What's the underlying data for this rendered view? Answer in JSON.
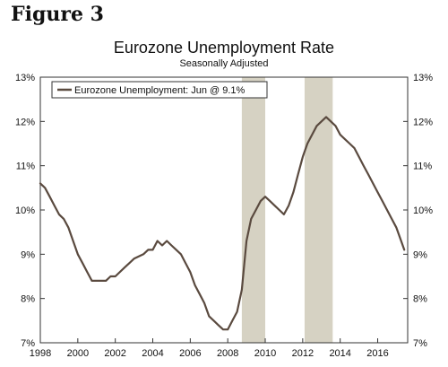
{
  "figure_label": "Figure 3",
  "chart_data": {
    "type": "line",
    "title": "Eurozone Unemployment Rate",
    "subtitle": "Seasonally Adjusted",
    "xlim": [
      1998,
      2017.6
    ],
    "ylim": [
      7,
      13
    ],
    "x_ticks": [
      1998,
      2000,
      2002,
      2004,
      2006,
      2008,
      2010,
      2012,
      2014,
      2016
    ],
    "y_ticks": [
      7,
      8,
      9,
      10,
      11,
      12,
      13
    ],
    "y_tick_labels": [
      "7%",
      "8%",
      "9%",
      "10%",
      "11%",
      "12%",
      "13%"
    ],
    "grid": false,
    "legend_position": "top-left",
    "recession_bands": [
      [
        2008.75,
        2010.0
      ],
      [
        2012.1,
        2013.6
      ]
    ],
    "colors": {
      "line": "#5a4a3f",
      "band": "#d6d2c3",
      "axis": "#333333"
    },
    "series": [
      {
        "name": "Eurozone Unemployment: Jun @ 9.1%",
        "x": [
          1998.0,
          1998.25,
          1998.5,
          1998.75,
          1999.0,
          1999.25,
          1999.5,
          1999.75,
          2000.0,
          2000.25,
          2000.5,
          2000.75,
          2001.0,
          2001.5,
          2001.75,
          2002.0,
          2002.5,
          2002.75,
          2003.0,
          2003.5,
          2003.75,
          2004.0,
          2004.25,
          2004.5,
          2004.75,
          2005.0,
          2005.25,
          2005.5,
          2005.75,
          2006.0,
          2006.25,
          2006.5,
          2006.75,
          2007.0,
          2007.25,
          2007.5,
          2007.75,
          2008.0,
          2008.25,
          2008.5,
          2008.75,
          2009.0,
          2009.25,
          2009.5,
          2009.75,
          2010.0,
          2010.25,
          2010.5,
          2010.75,
          2011.0,
          2011.25,
          2011.5,
          2011.75,
          2012.0,
          2012.25,
          2012.5,
          2012.75,
          2013.0,
          2013.25,
          2013.5,
          2013.75,
          2014.0,
          2014.25,
          2014.5,
          2014.75,
          2015.0,
          2015.25,
          2015.5,
          2015.75,
          2016.0,
          2016.25,
          2016.5,
          2016.75,
          2017.0,
          2017.25,
          2017.42
        ],
        "values": [
          10.6,
          10.5,
          10.3,
          10.1,
          9.9,
          9.8,
          9.6,
          9.3,
          9.0,
          8.8,
          8.6,
          8.4,
          8.4,
          8.4,
          8.5,
          8.5,
          8.7,
          8.8,
          8.9,
          9.0,
          9.1,
          9.1,
          9.3,
          9.2,
          9.3,
          9.2,
          9.1,
          9.0,
          8.8,
          8.6,
          8.3,
          8.1,
          7.9,
          7.6,
          7.5,
          7.4,
          7.3,
          7.3,
          7.5,
          7.7,
          8.2,
          9.3,
          9.8,
          10.0,
          10.2,
          10.3,
          10.2,
          10.1,
          10.0,
          9.9,
          10.1,
          10.4,
          10.8,
          11.2,
          11.5,
          11.7,
          11.9,
          12.0,
          12.1,
          12.0,
          11.9,
          11.7,
          11.6,
          11.5,
          11.4,
          11.2,
          11.0,
          10.8,
          10.6,
          10.4,
          10.2,
          10.0,
          9.8,
          9.6,
          9.3,
          9.1
        ]
      }
    ]
  }
}
